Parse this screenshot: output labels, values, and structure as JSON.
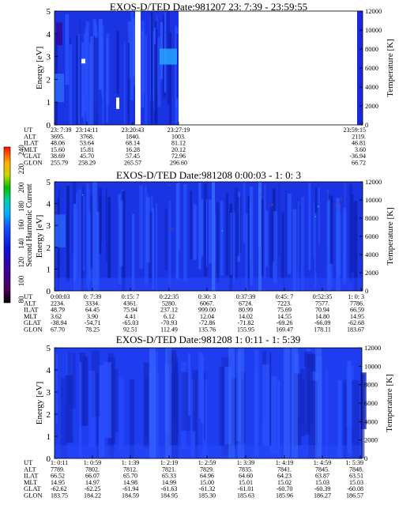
{
  "colorbar": {
    "label": "Second Harmonic Current",
    "ticks": [
      "240",
      "220",
      "200",
      "180",
      "160",
      "140",
      "120",
      "100",
      "80"
    ]
  },
  "row_labels": [
    "UT",
    "ALT",
    "ILAT",
    "MLT",
    "GLAT",
    "GLON"
  ],
  "chart_data": [
    {
      "type": "heatmap",
      "title": "EXOS-D/TED   Date:981207  23: 7:39 - 23:59:55",
      "ylabel": "Energy [eV]",
      "y2label": "Temperature [K]",
      "ylim": [
        0,
        5
      ],
      "yticks": [
        "0",
        "1",
        "2",
        "3",
        "4",
        "5"
      ],
      "y2lim": [
        0,
        12000
      ],
      "y2ticks": [
        "0",
        "2000",
        "4000",
        "6000",
        "8000",
        "10000",
        "12000"
      ],
      "columns": [
        {
          "UT": "23: 7:39",
          "ALT": "3695.",
          "ILAT": "48.06",
          "MLT": "15.60",
          "GLAT": "38.69",
          "GLON": "255.79"
        },
        {
          "UT": "23:14:11",
          "ALT": "3768.",
          "ILAT": "53.64",
          "MLT": "15.81",
          "GLAT": "45.70",
          "GLON": "258.29"
        },
        {
          "UT": "23:20:43",
          "ALT": "1840.",
          "ILAT": "68.14",
          "MLT": "16.28",
          "GLAT": "57.45",
          "GLON": "265.57"
        },
        {
          "UT": "23:27:19",
          "ALT": "1003.",
          "ILAT": "81.12",
          "MLT": "20.12",
          "GLAT": "72.96",
          "GLON": "296.60"
        },
        {
          "UT": "23:59:15",
          "ALT": "2119.",
          "ILAT": "46.81",
          "MLT": "3.60",
          "GLAT": "-36.94",
          "GLON": "66.72"
        }
      ]
    },
    {
      "type": "heatmap",
      "title": "EXOS-D/TED   Date:981208  0:00:03 - 1: 0: 3",
      "ylabel": "Energy [eV]",
      "y2label": "Temperature [K]",
      "ylim": [
        0,
        5
      ],
      "yticks": [
        "0",
        "1",
        "2",
        "3",
        "4",
        "5"
      ],
      "y2lim": [
        0,
        12000
      ],
      "y2ticks": [
        "0",
        "2000",
        "4000",
        "6000",
        "8000",
        "10000",
        "12000"
      ],
      "columns": [
        {
          "UT": "0:00:03",
          "ALT": "2234.",
          "ILAT": "48.79",
          "MLT": "3.62",
          "GLAT": "-38.94",
          "GLON": "67.70"
        },
        {
          "UT": "0: 7:39",
          "ALT": "3334.",
          "ILAT": "64.45",
          "MLT": "3.90",
          "GLAT": "-54.71",
          "GLON": "78.25"
        },
        {
          "UT": "0:15: 7",
          "ALT": "4361.",
          "ILAT": "75.94",
          "MLT": "4.41",
          "GLAT": "-65.03",
          "GLON": "92.51"
        },
        {
          "UT": "0:22:35",
          "ALT": "5280.",
          "ILAT": "237.12",
          "MLT": "6.12",
          "GLAT": "-70.93",
          "GLON": "112.49"
        },
        {
          "UT": "0:30: 3",
          "ALT": "6067.",
          "ILAT": "999.00",
          "MLT": "12.04",
          "GLAT": "-72.86",
          "GLON": "135.76"
        },
        {
          "UT": "0:37:39",
          "ALT": "6724.",
          "ILAT": "80.99",
          "MLT": "14.02",
          "GLAT": "-71.82",
          "GLON": "155.95"
        },
        {
          "UT": "0:45: 7",
          "ALT": "7223.",
          "ILAT": "75.69",
          "MLT": "14.55",
          "GLAT": "-69.26",
          "GLON": "169.47"
        },
        {
          "UT": "0:52:35",
          "ALT": "7577.",
          "ILAT": "70.94",
          "MLT": "14.80",
          "GLAT": "-66.09",
          "GLON": "178.11"
        },
        {
          "UT": "1: 0: 3",
          "ALT": "7786.",
          "ILAT": "66.59",
          "MLT": "14.95",
          "GLAT": "-62.68",
          "GLON": "183.67"
        }
      ]
    },
    {
      "type": "heatmap",
      "title": "EXOS-D/TED   Date:981208  1: 0:11 - 1: 5:39",
      "ylabel": "Energy [eV]",
      "y2label": "Temperature [K]",
      "ylim": [
        0,
        5
      ],
      "yticks": [
        "0",
        "1",
        "2",
        "3",
        "4",
        "5"
      ],
      "y2lim": [
        0,
        12000
      ],
      "y2ticks": [
        "0",
        "2000",
        "4000",
        "6000",
        "8000",
        "10000",
        "12000"
      ],
      "columns": [
        {
          "UT": "1: 0:11",
          "ALT": "7789.",
          "ILAT": "66.52",
          "MLT": "14.95",
          "GLAT": "-62.62",
          "GLON": "183.75"
        },
        {
          "UT": "1: 0:59",
          "ALT": "7802.",
          "ILAT": "66.07",
          "MLT": "14.97",
          "GLAT": "-62.25",
          "GLON": "184.22"
        },
        {
          "UT": "1: 1:39",
          "ALT": "7812.",
          "ILAT": "65.70",
          "MLT": "14.98",
          "GLAT": "-61.94",
          "GLON": "184.59"
        },
        {
          "UT": "1: 2:19",
          "ALT": "7821.",
          "ILAT": "65.33",
          "MLT": "14.99",
          "GLAT": "-61.63",
          "GLON": "184.95"
        },
        {
          "UT": "1: 2:59",
          "ALT": "7829.",
          "ILAT": "64.96",
          "MLT": "15.00",
          "GLAT": "-61.32",
          "GLON": "185.30"
        },
        {
          "UT": "1: 3:39",
          "ALT": "7835.",
          "ILAT": "64.60",
          "MLT": "15.01",
          "GLAT": "-61.01",
          "GLON": "185.63"
        },
        {
          "UT": "1: 4:19",
          "ALT": "7841.",
          "ILAT": "64.23",
          "MLT": "15.02",
          "GLAT": "-60.70",
          "GLON": "185.96"
        },
        {
          "UT": "1: 4:59",
          "ALT": "7845.",
          "ILAT": "63.87",
          "MLT": "15.03",
          "GLAT": "-60.39",
          "GLON": "186.27"
        },
        {
          "UT": "1: 5:39",
          "ALT": "7848.",
          "ILAT": "63.51",
          "MLT": "15.03",
          "GLAT": "-60.08",
          "GLON": "186.57"
        }
      ]
    }
  ]
}
